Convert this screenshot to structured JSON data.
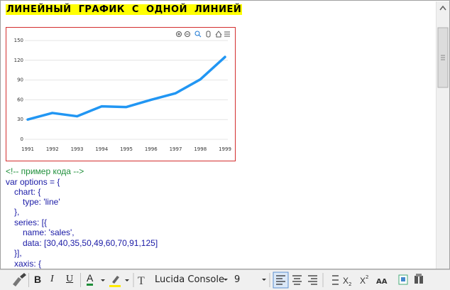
{
  "heading": "ЛИНЕЙНЫЙ  ГРАФИК  С  ОДНОЙ  ЛИНИЕЙ",
  "chart_data": {
    "type": "line",
    "categories": [
      "1991",
      "1992",
      "1993",
      "1994",
      "1995",
      "1996",
      "1997",
      "1998",
      "1999"
    ],
    "values": [
      30,
      40,
      35,
      50,
      49,
      60,
      70,
      91,
      125
    ],
    "color": "#2196f3",
    "ylim": [
      0,
      150
    ],
    "yticks": [
      0,
      30,
      60,
      90,
      120,
      150
    ],
    "grid": true
  },
  "code": [
    "<!-- пример кода -->",
    "var options = {",
    "chart: {",
    "type: 'line'",
    "},",
    "series: [{",
    "name: 'sales',",
    "data: [30,40,35,50,49,60,70,91,125]",
    "}],",
    "xaxis: {"
  ],
  "toolbar": {
    "buttons": [
      "B",
      "I",
      "U",
      "A"
    ],
    "font": "Lucida Console",
    "size": "9"
  }
}
